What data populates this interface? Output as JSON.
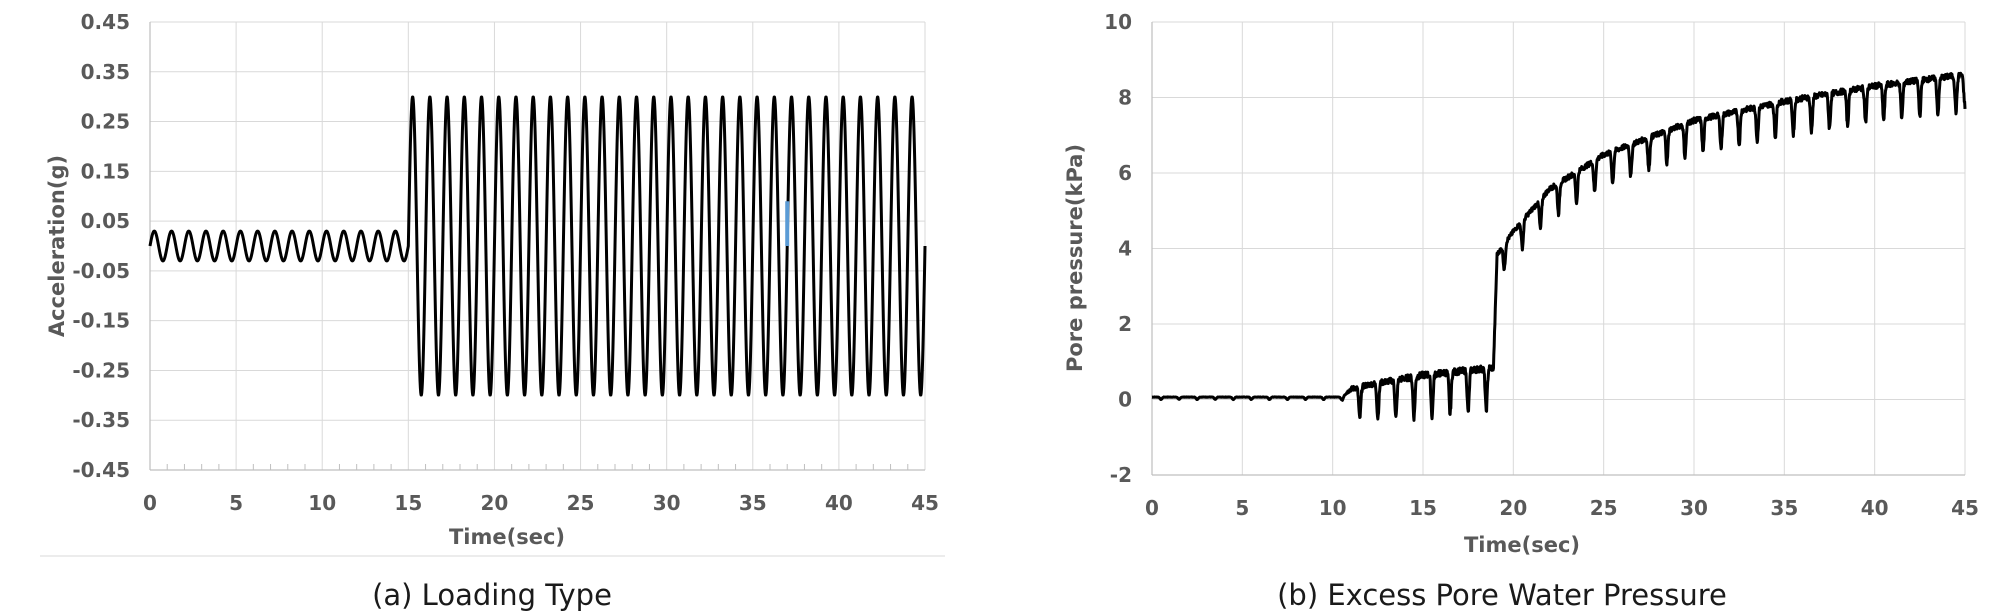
{
  "chart_data": [
    {
      "type": "line",
      "caption": "(a) Loading Type",
      "xlabel": "Time(sec)",
      "ylabel": "Acceleration(g)",
      "xlim": [
        0,
        45
      ],
      "ylim": [
        -0.45,
        0.45
      ],
      "x_ticks": [
        "0",
        "5",
        "10",
        "15",
        "20",
        "25",
        "30",
        "35",
        "40",
        "45"
      ],
      "y_ticks": [
        "0.45",
        "0.35",
        "0.25",
        "0.15",
        "0.05",
        "-0.05",
        "-0.15",
        "-0.25",
        "-0.35",
        "-0.45"
      ],
      "grid": true,
      "series": [
        {
          "color": "#000000",
          "segments": [
            {
              "t_start": 0,
              "t_end": 15,
              "amplitude": 0.03,
              "frequency_hz": 1,
              "offset": 0
            },
            {
              "t_start": 15,
              "t_end": 45,
              "amplitude": 0.3,
              "frequency_hz": 1,
              "offset": 0
            }
          ]
        }
      ],
      "marker": {
        "x": 37,
        "y_from": 0.0,
        "y_to": 0.09,
        "color": "#5b9bd5"
      }
    },
    {
      "type": "line",
      "caption": "(b) Excess Pore Water Pressure",
      "xlabel": "Time(sec)",
      "ylabel": "Pore pressure(kPa)",
      "xlim": [
        0,
        45
      ],
      "ylim": [
        -2,
        10
      ],
      "x_ticks": [
        "0",
        "5",
        "10",
        "15",
        "20",
        "25",
        "30",
        "35",
        "40",
        "45"
      ],
      "y_ticks": [
        "10",
        "8",
        "6",
        "4",
        "2",
        "0",
        "-2"
      ],
      "grid": true,
      "series": [
        {
          "color": "#000000",
          "frequency_hz": 1,
          "mean_trend": {
            "x": [
              0,
              10.5,
              12,
              15,
              18.9,
              19.1,
              20,
              22,
              25,
              30,
              35,
              40,
              45
            ],
            "y": [
              0.05,
              0.05,
              0.2,
              0.4,
              0.6,
              3.7,
              4.3,
              5.4,
              6.3,
              7.2,
              7.7,
              8.1,
              8.4
            ]
          },
          "oscillation_amplitude": {
            "x": [
              0,
              10.5,
              11,
              15,
              18.9,
              19.1,
              22,
              30,
              45
            ],
            "y": [
              0.04,
              0.04,
              0.5,
              0.7,
              0.7,
              0.4,
              0.5,
              0.55,
              0.6
            ]
          }
        }
      ]
    }
  ]
}
